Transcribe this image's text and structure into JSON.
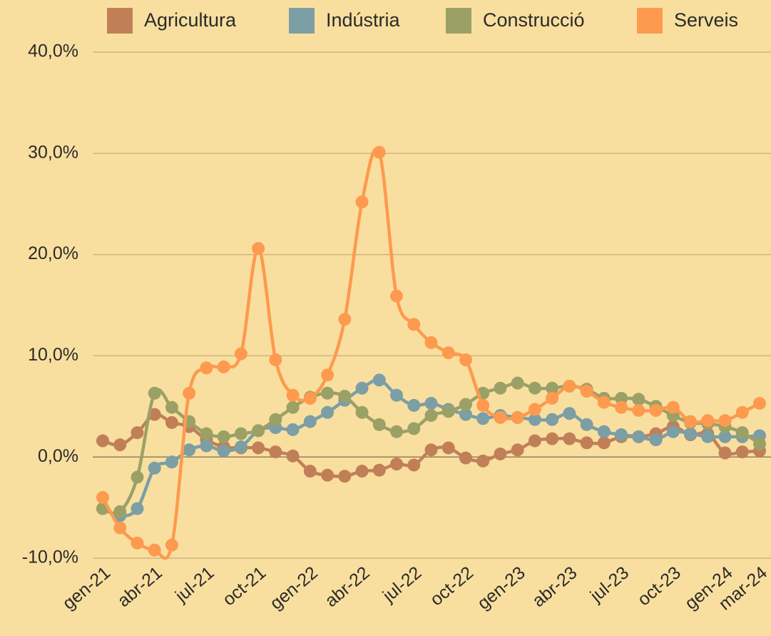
{
  "chart_data": {
    "type": "line",
    "categories": [
      "gen-21",
      null,
      null,
      "abr-21",
      null,
      null,
      "jul-21",
      null,
      null,
      "oct-21",
      null,
      null,
      "gen-22",
      null,
      null,
      "abr-22",
      null,
      null,
      "jul-22",
      null,
      null,
      "oct-22",
      null,
      null,
      "gen-23",
      null,
      null,
      "abr-23",
      null,
      null,
      "jul-23",
      null,
      null,
      "oct-23",
      null,
      null,
      "gen-24",
      null,
      "mar-24"
    ],
    "ylim": [
      -10,
      40
    ],
    "yticks": [
      {
        "value": -10,
        "label": "-10,0%"
      },
      {
        "value": 0,
        "label": "0,0%"
      },
      {
        "value": 10,
        "label": "10,0%"
      },
      {
        "value": 20,
        "label": "20,0%"
      },
      {
        "value": 30,
        "label": "30,0%"
      },
      {
        "value": 40,
        "label": "40,0%"
      }
    ],
    "grid": true,
    "legend": "top",
    "series": [
      {
        "name": "Agricultura",
        "color": "#c17f58",
        "values": [
          1.6,
          1.2,
          2.4,
          4.2,
          3.4,
          3.0,
          1.7,
          1.0,
          0.9,
          0.9,
          0.5,
          0.1,
          -1.4,
          -1.8,
          -1.9,
          -1.4,
          -1.3,
          -0.7,
          -0.8,
          0.7,
          0.9,
          -0.1,
          -0.4,
          0.3,
          0.7,
          1.6,
          1.8,
          1.8,
          1.4,
          1.4,
          2.0,
          2.0,
          2.3,
          3.0,
          2.2,
          2.3,
          0.4,
          0.5,
          0.6
        ]
      },
      {
        "name": "Indústria",
        "color": "#7c9ea5",
        "values": [
          -5.1,
          -5.8,
          -5.1,
          -1.1,
          -0.5,
          0.7,
          1.1,
          0.6,
          1.0,
          2.6,
          2.9,
          2.7,
          3.5,
          4.4,
          5.6,
          6.8,
          7.6,
          6.1,
          5.1,
          5.3,
          4.7,
          4.2,
          3.8,
          4.1,
          3.9,
          3.7,
          3.7,
          4.3,
          3.2,
          2.5,
          2.2,
          2.0,
          1.7,
          2.5,
          2.3,
          2.0,
          2.0,
          2.0,
          2.1
        ]
      },
      {
        "name": "Construcció",
        "color": "#9ba166",
        "values": [
          -5.1,
          -5.4,
          -2.0,
          6.3,
          4.9,
          3.5,
          2.3,
          2.0,
          2.3,
          2.6,
          3.7,
          4.9,
          5.9,
          6.3,
          6.0,
          4.4,
          3.2,
          2.5,
          2.8,
          4.1,
          4.5,
          5.2,
          6.3,
          6.8,
          7.3,
          6.8,
          6.8,
          7.0,
          6.7,
          5.8,
          5.8,
          5.7,
          5.0,
          4.1,
          3.4,
          3.3,
          3.0,
          2.4,
          1.3
        ]
      },
      {
        "name": "Serveis",
        "color": "#fd9a4f",
        "values": [
          -4.0,
          -7.0,
          -8.5,
          -9.2,
          -8.7,
          6.3,
          8.8,
          8.9,
          10.2,
          20.6,
          9.6,
          6.1,
          5.8,
          8.1,
          13.6,
          25.2,
          30.1,
          15.9,
          13.1,
          11.3,
          10.3,
          9.6,
          5.1,
          3.9,
          3.9,
          4.7,
          5.8,
          7.0,
          6.5,
          5.4,
          4.9,
          4.6,
          4.6,
          4.9,
          3.5,
          3.6,
          3.6,
          4.4,
          5.3
        ]
      }
    ]
  }
}
